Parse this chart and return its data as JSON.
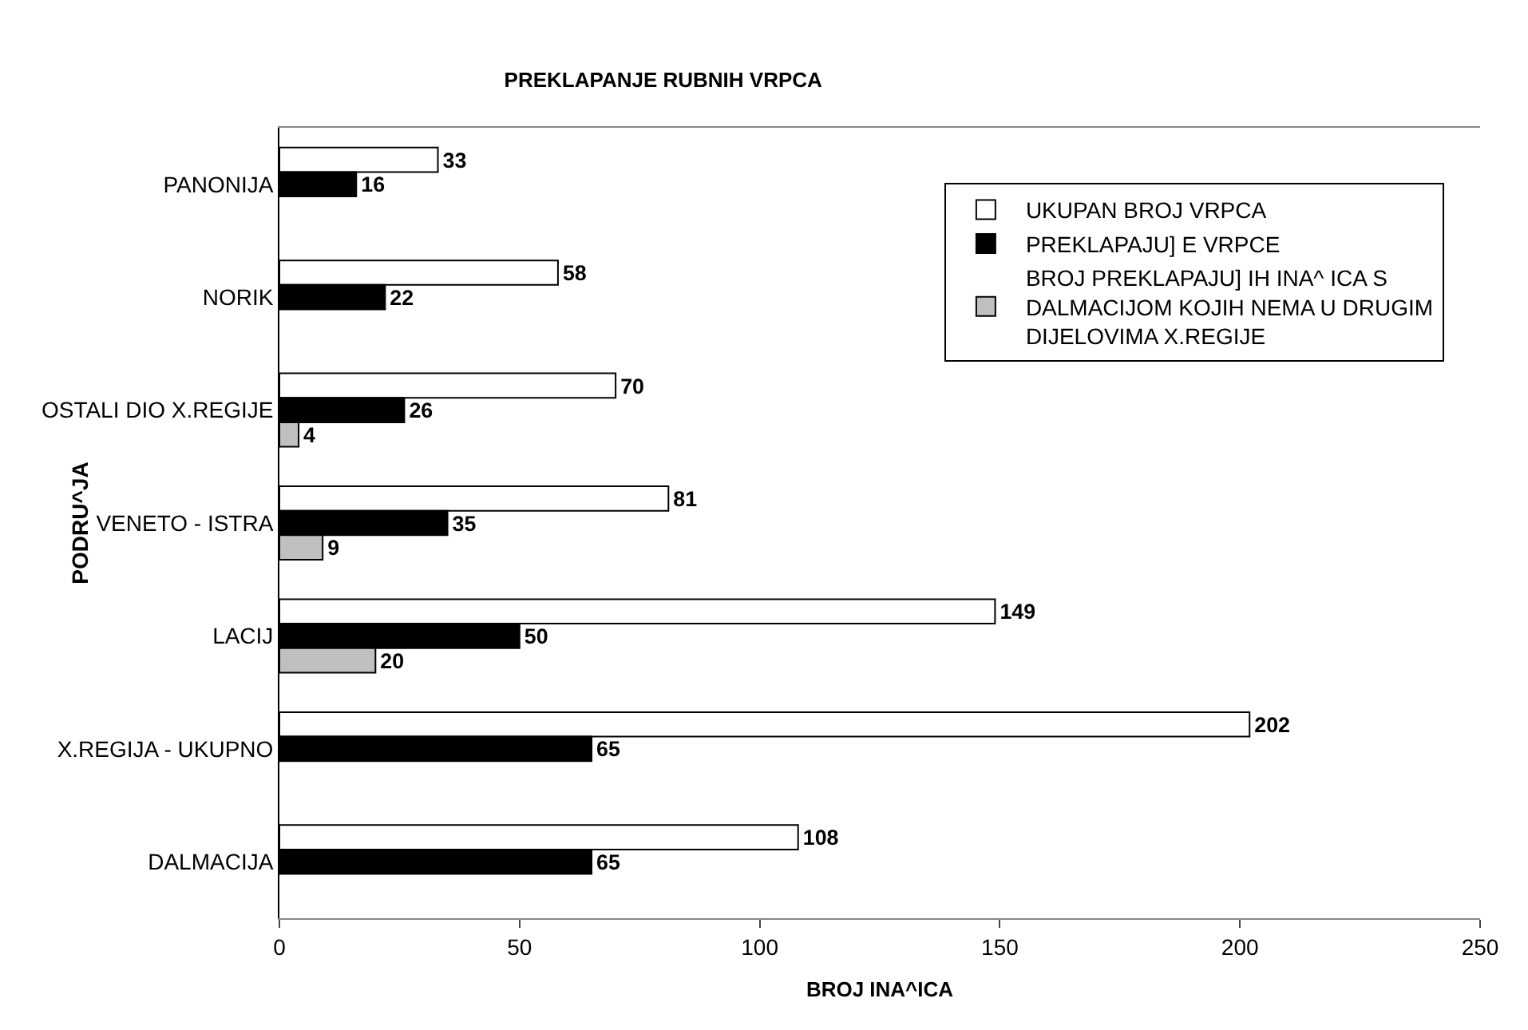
{
  "chart_data": {
    "type": "bar",
    "orientation": "horizontal",
    "title": "PREKLAPANJE RUBNIH VRPCA",
    "xlabel": "BROJ INA^ICA",
    "ylabel": "PODRU^JA",
    "categories": [
      "PANONIJA",
      "NORIK",
      "OSTALI DIO X.REGIJE",
      "VENETO - ISTRA",
      "LACIJ",
      "X.REGIJA - UKUPNO",
      "DALMACIJA"
    ],
    "series": [
      {
        "name": "UKUPAN BROJ VRPCA",
        "color": "#ffffff",
        "values": [
          33,
          58,
          70,
          81,
          149,
          202,
          108
        ]
      },
      {
        "name": "PREKLAPAJU] E VRPCE",
        "color": "#000000",
        "values": [
          16,
          22,
          26,
          35,
          50,
          65,
          65
        ]
      },
      {
        "name": "BROJ PREKLAPAJU] IH INA^ ICA S DALMACIJOM KOJIH NEMA U DRUGIM DIJELOVIMA X.REGIJE",
        "color": "#c0c0c0",
        "values": [
          null,
          null,
          4,
          9,
          20,
          null,
          null
        ]
      }
    ],
    "xlim": [
      0,
      250
    ],
    "xticks": [
      0,
      50,
      100,
      150,
      200,
      250
    ],
    "grid": false,
    "legend": "top right",
    "data_labels": true
  }
}
